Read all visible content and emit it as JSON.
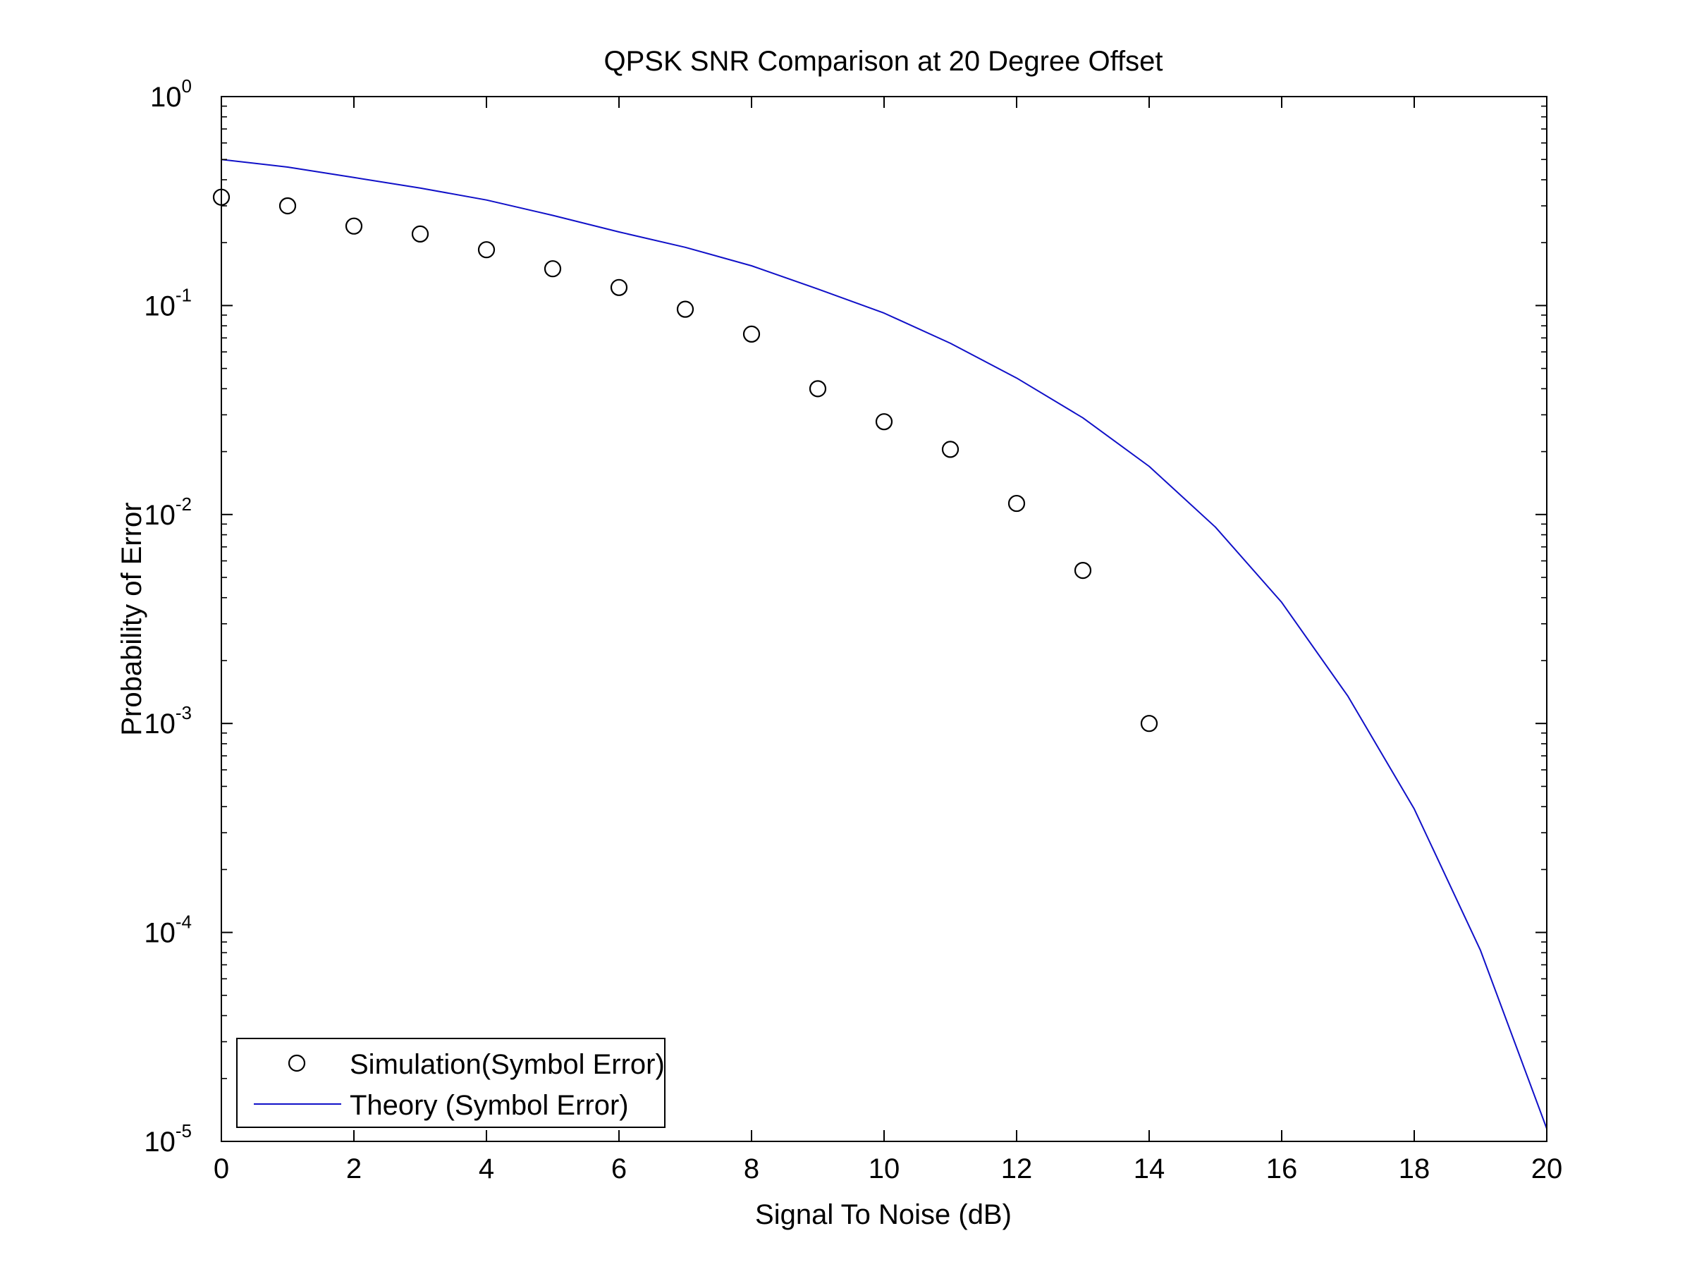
{
  "chart_data": {
    "type": "scatter",
    "title": "QPSK SNR Comparison at 20 Degree Offset",
    "xlabel": "Signal To Noise (dB)",
    "ylabel": "Probability of Error",
    "xlim": [
      0,
      20
    ],
    "ylim": [
      1e-05,
      1
    ],
    "yscale": "log",
    "x_ticks": [
      "0",
      "2",
      "4",
      "6",
      "8",
      "10",
      "12",
      "14",
      "16",
      "18",
      "20"
    ],
    "y_ticks": [
      {
        "base": "10",
        "exp": "0"
      },
      {
        "base": "10",
        "exp": "-1"
      },
      {
        "base": "10",
        "exp": "-2"
      },
      {
        "base": "10",
        "exp": "-3"
      },
      {
        "base": "10",
        "exp": "-4"
      },
      {
        "base": "10",
        "exp": "-5"
      }
    ],
    "grid": false,
    "legend_position": "bottom-left",
    "series": [
      {
        "name": "Simulation(Symbol Error)",
        "style": "markers",
        "marker": "circle",
        "color": "#000000",
        "x": [
          0,
          1,
          2,
          3,
          4,
          5,
          6,
          7,
          8,
          9,
          10,
          11,
          12,
          13,
          14
        ],
        "y": [
          0.33,
          0.3,
          0.24,
          0.22,
          0.185,
          0.15,
          0.122,
          0.096,
          0.073,
          0.04,
          0.0278,
          0.0205,
          0.0113,
          0.0054,
          0.001
        ]
      },
      {
        "name": "Theory (Symbol Error)",
        "style": "line",
        "color": "#1010c8",
        "x": [
          0,
          1,
          2,
          3,
          4,
          5,
          6,
          7,
          8,
          9,
          10,
          11,
          12,
          13,
          14,
          15,
          16,
          17,
          18,
          19,
          20
        ],
        "y": [
          0.5,
          0.46,
          0.41,
          0.365,
          0.32,
          0.27,
          0.225,
          0.19,
          0.155,
          0.12,
          0.092,
          0.066,
          0.045,
          0.029,
          0.017,
          0.0087,
          0.0038,
          0.00135,
          0.00039,
          8.2e-05,
          1.15e-05
        ]
      }
    ]
  }
}
